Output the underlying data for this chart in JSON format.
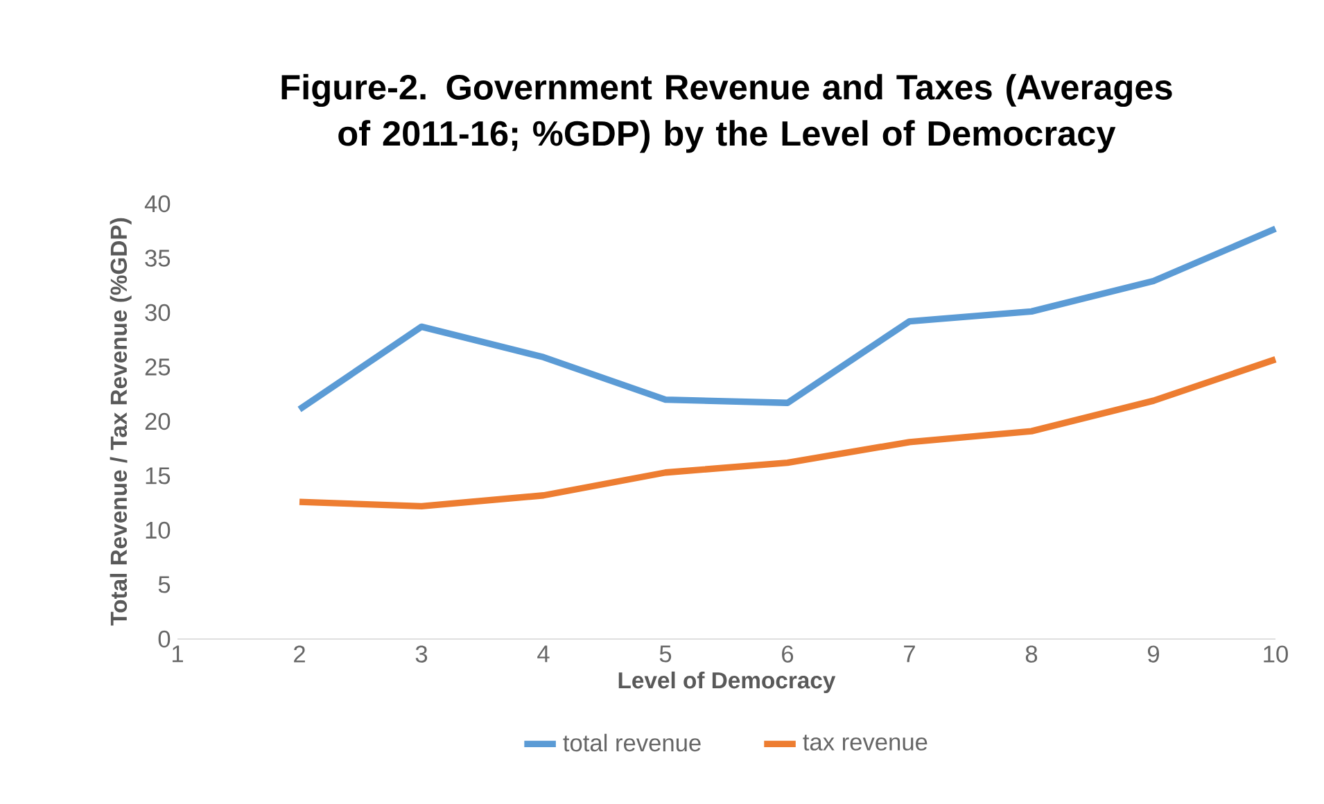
{
  "chart_data": {
    "type": "line",
    "title": "Figure-2.  Government Revenue and Taxes (Averages of 2011-16; %GDP) by the Level of Democracy",
    "xlabel": "Level of Democracy",
    "ylabel": "Total Revenue / Tax Revenue (%GDP)",
    "x": [
      2,
      3,
      4,
      5,
      6,
      7,
      8,
      9,
      10
    ],
    "xlim": [
      1,
      10
    ],
    "xticks": [
      1,
      2,
      3,
      4,
      5,
      6,
      7,
      8,
      9,
      10
    ],
    "ylim": [
      0,
      40
    ],
    "yticks": [
      0,
      5,
      10,
      15,
      20,
      25,
      30,
      35,
      40
    ],
    "legend": "bottom",
    "series": [
      {
        "name": "total revenue",
        "color": "#5b9bd5",
        "values": [
          21.1,
          28.7,
          25.9,
          22.0,
          21.7,
          29.2,
          30.1,
          32.9,
          37.7
        ]
      },
      {
        "name": "tax revenue",
        "color": "#ed7d31",
        "values": [
          12.6,
          12.2,
          13.2,
          15.3,
          16.2,
          18.1,
          19.1,
          21.9,
          25.7
        ]
      }
    ]
  }
}
